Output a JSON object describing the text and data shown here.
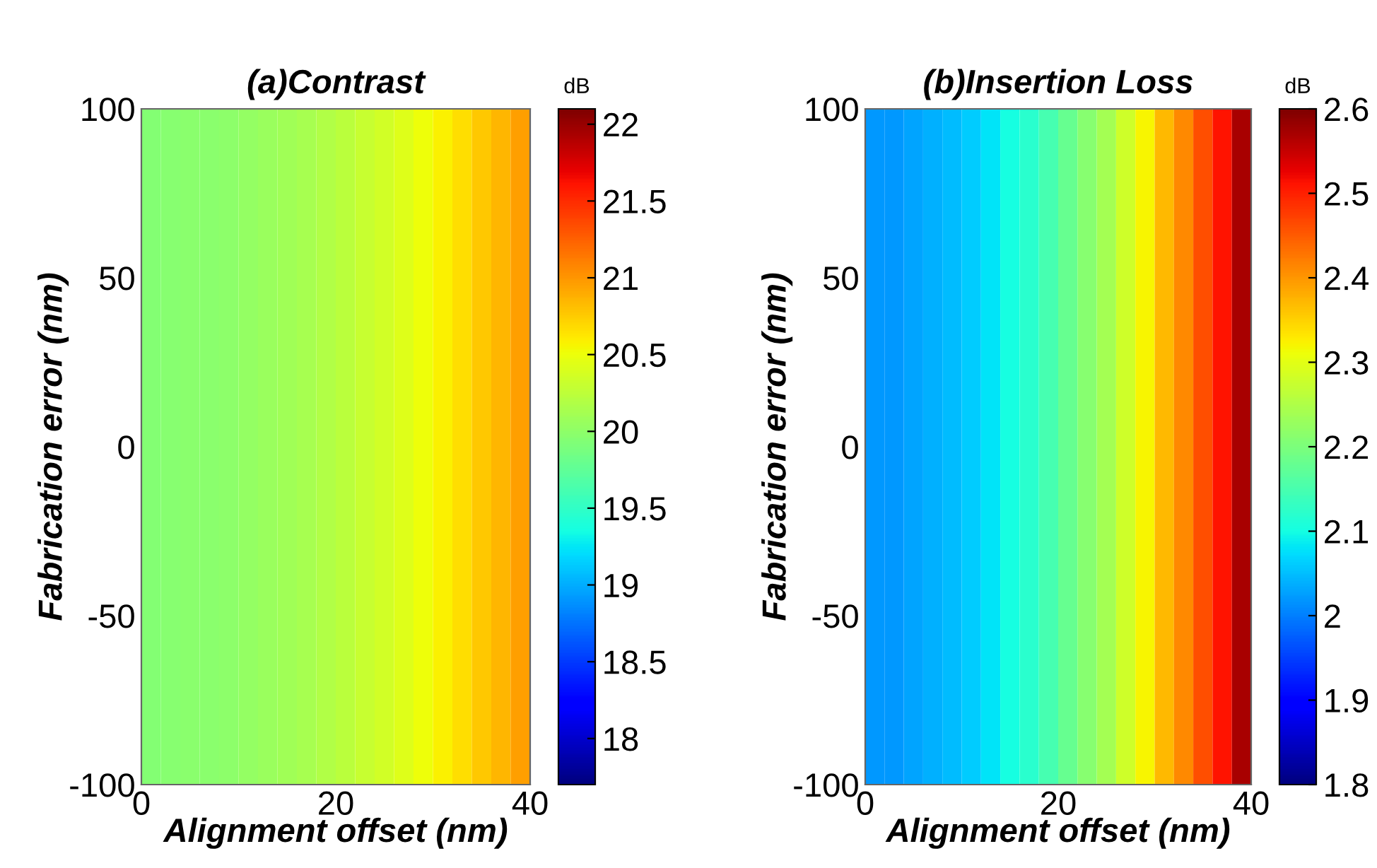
{
  "chart_data": [
    {
      "type": "heatmap",
      "title": "(a)Contrast",
      "xlabel": "Alignment offset (nm)",
      "ylabel": "Fabrication error (nm)",
      "clabel": "dB",
      "x": [
        1,
        3,
        5,
        7,
        9,
        11,
        13,
        15,
        17,
        19,
        21,
        23,
        25,
        27,
        29,
        31,
        33,
        35,
        37,
        39
      ],
      "cells": [
        [
          19.95,
          19.96,
          19.97,
          19.98,
          20.0,
          20.03,
          20.06,
          20.1,
          20.14,
          20.19,
          20.24,
          20.3,
          20.36,
          20.43,
          20.51,
          20.58,
          20.67,
          20.76,
          20.85,
          20.95
        ]
      ],
      "clim": [
        17.7,
        22.1
      ],
      "cticks": [
        18,
        18.5,
        19,
        19.5,
        20,
        20.5,
        21,
        21.5,
        22
      ],
      "xlim": [
        0,
        40
      ],
      "xticks": [
        0,
        20,
        40
      ],
      "ylim": [
        -100,
        100
      ],
      "yticks": [
        -100,
        -50,
        0,
        50,
        100
      ]
    },
    {
      "type": "heatmap",
      "title": "(b)Insertion Loss",
      "xlabel": "Alignment offset (nm)",
      "ylabel": "Fabrication error (nm)",
      "clabel": "dB",
      "x": [
        1,
        3,
        5,
        7,
        9,
        11,
        13,
        15,
        17,
        19,
        21,
        23,
        25,
        27,
        29,
        31,
        33,
        35,
        37,
        39
      ],
      "cells": [
        [
          2.02,
          2.02,
          2.03,
          2.04,
          2.05,
          2.06,
          2.08,
          2.1,
          2.12,
          2.15,
          2.18,
          2.21,
          2.24,
          2.28,
          2.32,
          2.37,
          2.41,
          2.46,
          2.51,
          2.57
        ]
      ],
      "clim": [
        1.8,
        2.6
      ],
      "cticks": [
        1.8,
        1.9,
        2,
        2.1,
        2.2,
        2.3,
        2.4,
        2.5,
        2.6
      ],
      "xlim": [
        0,
        40
      ],
      "xticks": [
        0,
        20,
        40
      ],
      "ylim": [
        -100,
        100
      ],
      "yticks": [
        -100,
        -50,
        0,
        50,
        100
      ]
    }
  ]
}
